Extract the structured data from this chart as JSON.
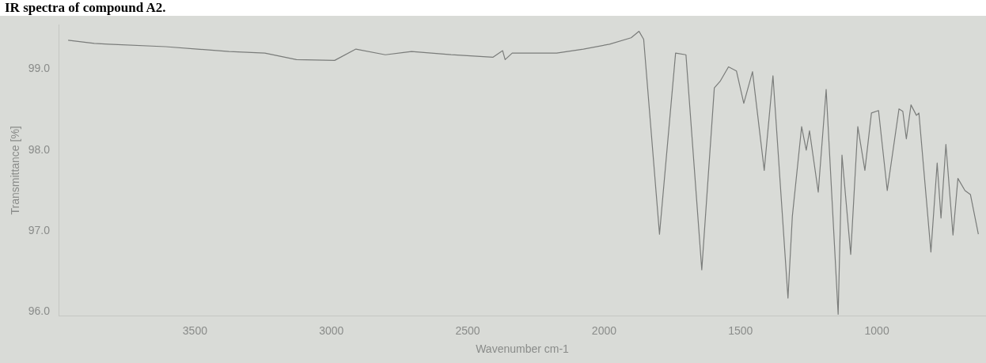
{
  "chart_data": {
    "type": "line",
    "title": "IR spectra of compound A2.",
    "xlabel": "Wavenumber cm-1",
    "ylabel": "Transmittance [%]",
    "x": [
      3965,
      3869,
      3817,
      3608,
      3491,
      3375,
      3244,
      3128,
      2988,
      2910,
      2802,
      2706,
      2561,
      2407,
      2372,
      2363,
      2337,
      2174,
      2076,
      1980,
      1901,
      1872,
      1855,
      1797,
      1738,
      1700,
      1642,
      1596,
      1575,
      1544,
      1515,
      1488,
      1456,
      1413,
      1381,
      1326,
      1310,
      1276,
      1259,
      1247,
      1215,
      1186,
      1142,
      1128,
      1096,
      1070,
      1044,
      1020,
      994,
      962,
      919,
      905,
      892,
      875,
      855,
      846,
      802,
      779,
      765,
      747,
      721,
      703,
      677,
      657,
      628
    ],
    "series": [
      {
        "color": "#7a7c7a",
        "values": [
          99.36,
          99.32,
          99.31,
          99.28,
          99.25,
          99.22,
          99.2,
          99.12,
          99.11,
          99.25,
          99.18,
          99.22,
          99.18,
          99.15,
          99.23,
          99.12,
          99.2,
          99.2,
          99.25,
          99.31,
          99.39,
          99.47,
          99.37,
          96.96,
          99.2,
          99.18,
          96.52,
          98.77,
          98.85,
          99.03,
          98.98,
          98.58,
          98.97,
          97.75,
          98.92,
          96.17,
          97.18,
          98.29,
          98.0,
          98.24,
          97.48,
          98.75,
          95.97,
          97.94,
          96.71,
          98.29,
          97.75,
          98.46,
          98.49,
          97.5,
          98.51,
          98.48,
          98.14,
          98.56,
          98.43,
          98.46,
          96.74,
          97.84,
          97.16,
          98.07,
          96.95,
          97.65,
          97.5,
          97.45,
          96.96
        ]
      }
    ],
    "xlim": [
      4000,
      600
    ],
    "xticks": [
      3500,
      3000,
      2500,
      2000,
      1500,
      1000
    ],
    "ylim": [
      95.95,
      99.55
    ],
    "yticks": [
      {
        "value": 96,
        "label": "96.0"
      },
      {
        "value": 97,
        "label": "97.0"
      },
      {
        "value": 98,
        "label": "98.0"
      },
      {
        "value": 99,
        "label": "99.0"
      }
    ],
    "grid": false,
    "legend": false,
    "marker": "none",
    "line_style": "solid"
  }
}
